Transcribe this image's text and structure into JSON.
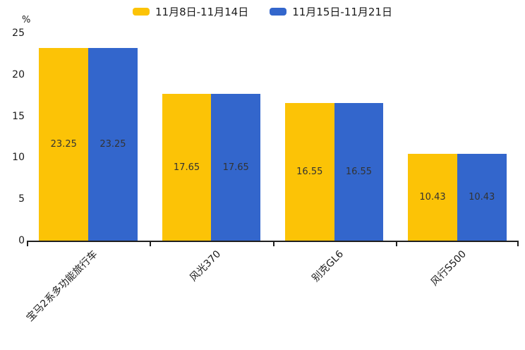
{
  "chart_data": {
    "type": "bar",
    "title": "",
    "categories": [
      "宝马2系多功能旅行车",
      "风光370",
      "别克GL6",
      "风行S500"
    ],
    "series": [
      {
        "name": "11月8日-11月14日",
        "color": "#FCC306",
        "values": [
          23.25,
          17.65,
          16.55,
          10.43
        ]
      },
      {
        "name": "11月15日-11月21日",
        "color": "#3366CC",
        "values": [
          23.25,
          17.65,
          16.55,
          10.43
        ]
      }
    ],
    "xlabel": "",
    "ylabel": "%",
    "ylim": [
      0,
      25
    ],
    "yticks": [
      0,
      5,
      10,
      15,
      20,
      25
    ],
    "grid": false,
    "legend_position": "top-center",
    "value_labels": "inside-center",
    "value_label_texts": [
      "23.25",
      "17.65",
      "16.55",
      "10.43"
    ],
    "colors": {
      "axis_line": "#1f1f1f",
      "tick_text": "#1a1a1a",
      "value_label_text": "#333333",
      "background": "#ffffff"
    }
  }
}
